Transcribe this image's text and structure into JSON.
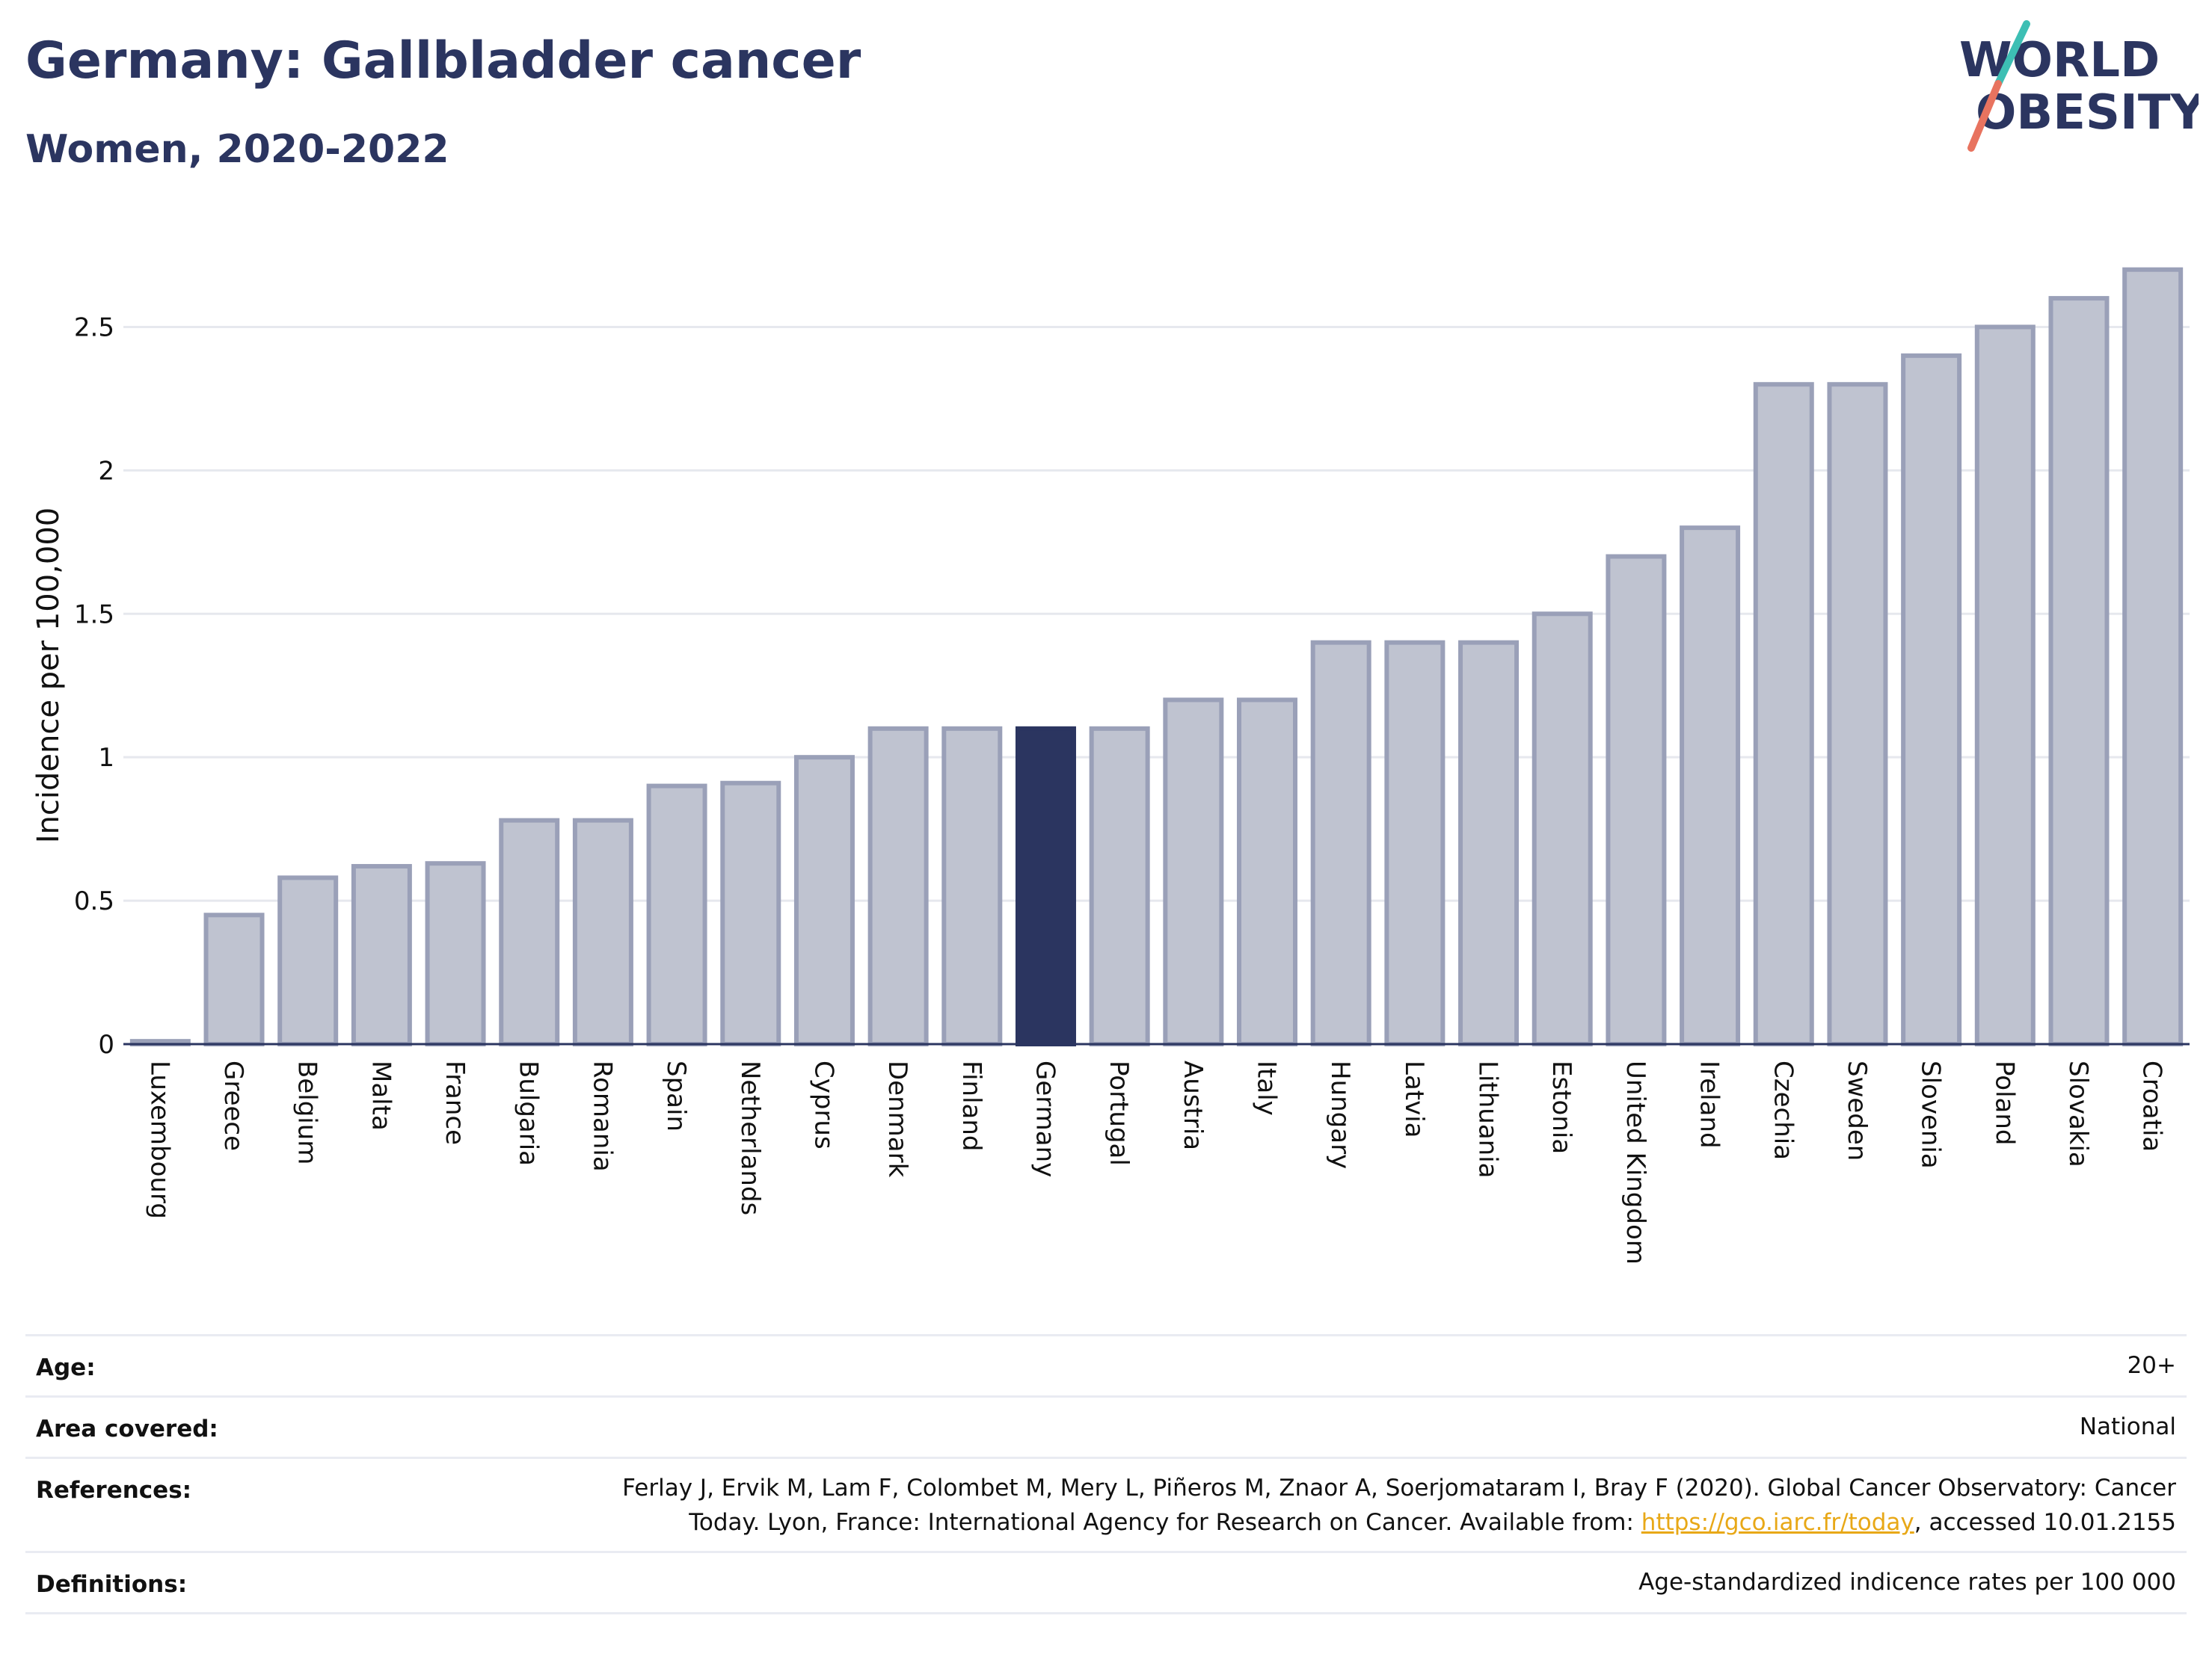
{
  "header": {
    "title": "Germany: Gallbladder cancer",
    "subtitle": "Women, 2020-2022"
  },
  "logo": {
    "line1": "WORLD",
    "line2": "OBESITY"
  },
  "colors": {
    "highlight": "#2b3560",
    "bar_fill": "#bfc3d0",
    "bar_stroke": "#9aa0b8",
    "grid": "#e6e8ee",
    "logo_teal": "#3dbfb4",
    "logo_coral": "#e8735f"
  },
  "chart_data": {
    "type": "bar",
    "categories": [
      "Luxembourg",
      "Greece",
      "Belgium",
      "Malta",
      "France",
      "Bulgaria",
      "Romania",
      "Spain",
      "Netherlands",
      "Cyprus",
      "Denmark",
      "Finland",
      "Germany",
      "Portugal",
      "Austria",
      "Italy",
      "Hungary",
      "Latvia",
      "Lithuania",
      "Estonia",
      "United Kingdom",
      "Ireland",
      "Czechia",
      "Sweden",
      "Slovenia",
      "Poland",
      "Slovakia",
      "Croatia"
    ],
    "values": [
      0.01,
      0.45,
      0.58,
      0.62,
      0.63,
      0.78,
      0.78,
      0.9,
      0.91,
      1.0,
      1.1,
      1.1,
      1.1,
      1.1,
      1.2,
      1.2,
      1.4,
      1.4,
      1.4,
      1.5,
      1.7,
      1.8,
      2.3,
      2.3,
      2.4,
      2.5,
      2.6,
      2.7
    ],
    "highlight": "Germany",
    "ylabel": "Incidence per 100,000",
    "yticks": [
      0,
      0.5,
      1,
      1.5,
      2,
      2.5
    ],
    "ytick_labels": [
      "0",
      "0.5",
      "1",
      "1.5",
      "2",
      "2.5"
    ],
    "ylim": [
      0,
      2.78
    ],
    "grid": true
  },
  "info": {
    "age_label": "Age:",
    "age_value": "20+",
    "area_label": "Area covered:",
    "area_value": "National",
    "references_label": "References:",
    "references_line1": "Ferlay J, Ervik M, Lam F, Colombet M, Mery L, Piñeros M, Znaor A, Soerjomataram I, Bray F (2020). Global Cancer Observatory: Cancer",
    "references_line2_pre": "Today. Lyon, France: International Agency for Research on Cancer. Available from: ",
    "references_link": "https://gco.iarc.fr/today",
    "references_line2_post": ", accessed 10.01.2155",
    "definitions_label": "Definitions:",
    "definitions_value": "Age-standardized indicence rates per 100 000"
  }
}
